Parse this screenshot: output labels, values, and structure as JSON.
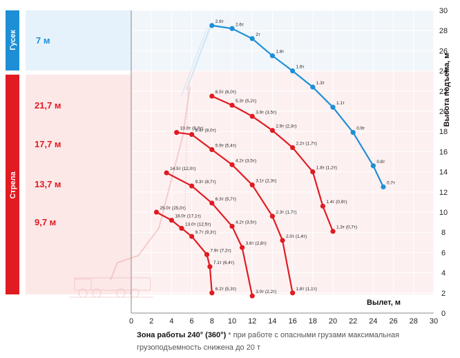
{
  "sections": {
    "jib": {
      "name": "Гусек",
      "value": "7 м",
      "color": "#1e8fd6"
    },
    "boom": {
      "name": "Стрела",
      "color": "#e11b22",
      "values": [
        "21,7 м",
        "17,7 м",
        "13,7 м",
        "9,7 м"
      ]
    }
  },
  "caption": {
    "bold": "Зона работы 240° (360°)",
    "rest": " * при работе с опасными грузами максимальная грузоподъемность снижена до 20 т"
  },
  "chart_data": {
    "type": "line",
    "xlabel": "Вылет, м",
    "ylabel": "Высота подъема, м",
    "xlim": [
      0,
      30
    ],
    "ylim": [
      0,
      30
    ],
    "x_ticks": [
      0,
      2,
      4,
      6,
      8,
      10,
      12,
      14,
      16,
      18,
      20,
      22,
      24,
      26,
      28,
      30
    ],
    "y_ticks": [
      0,
      2,
      4,
      6,
      8,
      10,
      12,
      14,
      16,
      18,
      20,
      22,
      24,
      26,
      28,
      30
    ],
    "series": [
      {
        "name": "Гусек 7 м",
        "color": "#1e8fd6",
        "x": [
          8,
          10,
          12,
          14,
          16,
          18,
          20,
          22,
          24,
          25
        ],
        "y": [
          28.5,
          28.2,
          27.2,
          25.5,
          24.0,
          22.4,
          20.4,
          17.9,
          14.6,
          12.5
        ],
        "labels": [
          "2.6т",
          "2.6т",
          "2т",
          "1.8т",
          "1.6т",
          "1.3т",
          "1.1т",
          "0.9т",
          "0.8т",
          "0.7т"
        ]
      },
      {
        "name": "Стрела 21,7 м",
        "color": "#e11b22",
        "x": [
          8,
          10,
          12,
          14,
          16,
          18,
          19,
          20
        ],
        "y": [
          21.5,
          20.6,
          19.5,
          18.1,
          16.4,
          14.0,
          10.6,
          8.1
        ],
        "labels": [
          "6.5т (6,0т)",
          "5.3т (5,2т)",
          "3.9т (3,5т)",
          "2.9т (2,3т)",
          "2.2т (1,7т)",
          "1.8т (1,2т)",
          "1.4т (0,9т)",
          "1.3т (0,7т)"
        ]
      },
      {
        "name": "Стрела 17,7 м",
        "color": "#e11b22",
        "x": [
          4.5,
          6,
          8,
          10,
          12,
          14,
          15,
          16
        ],
        "y": [
          17.9,
          17.7,
          16.2,
          14.7,
          12.7,
          9.6,
          7.2,
          2.0
        ],
        "labels": [
          "10.0т (8,0т)",
          "8.4т (8,0т)",
          "5.9т (5,4т)",
          "4.2т (3,5т)",
          "3.1т (2,3т)",
          "2.3т (1,7т)",
          "2.0т (1,4т)",
          "1.8т (1,1т)"
        ]
      },
      {
        "name": "Стрела 13,7 м",
        "color": "#e11b22",
        "x": [
          3.5,
          6,
          8,
          10,
          11,
          12
        ],
        "y": [
          13.9,
          12.6,
          10.9,
          8.6,
          6.5,
          1.7
        ],
        "labels": [
          "14.5т (12,0т)",
          "9.3т (8,7т)",
          "6.3т (5,7т)",
          "4.2т (3,5т)",
          "3.6т (2,8т)",
          "3.0т (2,2т)"
        ]
      },
      {
        "name": "Стрела 9,7 м",
        "color": "#e11b22",
        "x": [
          2.5,
          4,
          5,
          6,
          7.5,
          7.8,
          8
        ],
        "y": [
          10.0,
          9.2,
          8.4,
          7.6,
          5.8,
          4.6,
          2.0
        ],
        "labels": [
          "25.0т (25,0т)",
          "18.0т (17,1т)",
          "13.0т (12,5т)",
          "9.7т (9,3т)",
          "7.9т (7,2т)",
          "7.1т (6,4т)",
          "6.2т (5,3т)"
        ]
      }
    ]
  }
}
